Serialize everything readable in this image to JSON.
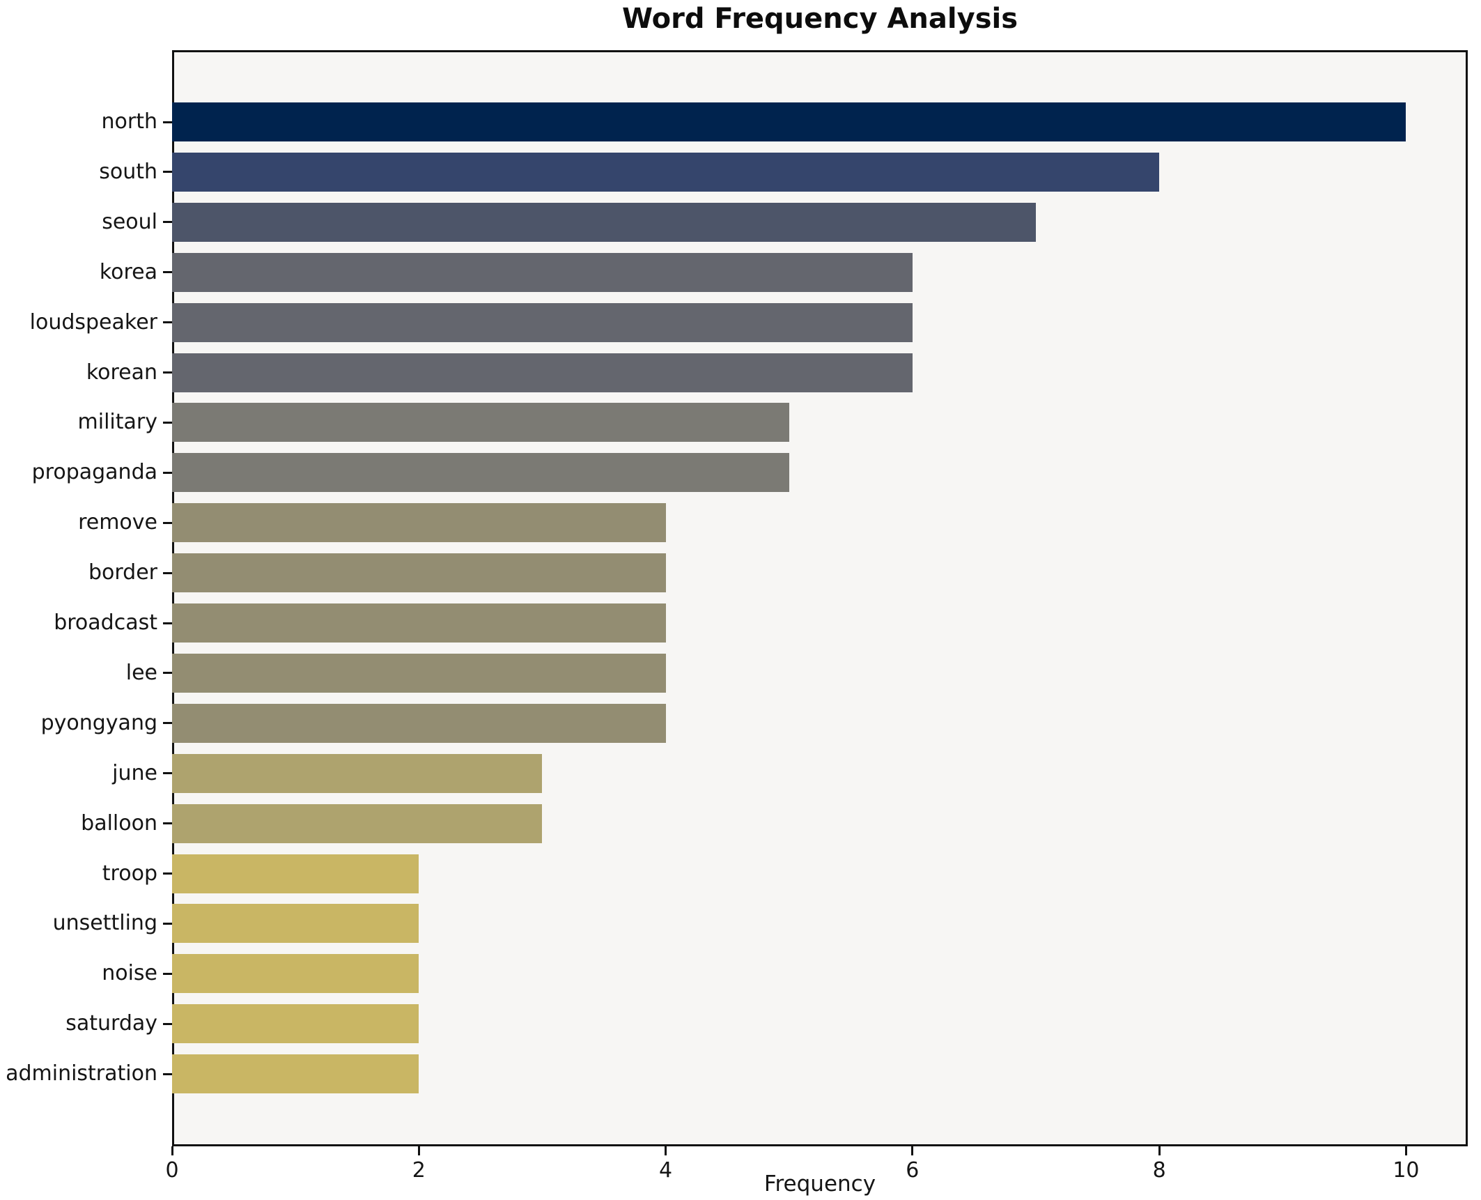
{
  "title": "Word Frequency Analysis",
  "xlabel": "Frequency",
  "chart_data": {
    "type": "bar",
    "orientation": "horizontal",
    "title": "Word Frequency Analysis",
    "xlabel": "Frequency",
    "ylabel": "",
    "xlim": [
      0,
      10.5
    ],
    "xticks": [
      0,
      2,
      4,
      6,
      8,
      10
    ],
    "grid": false,
    "legend": "none",
    "plot_background": "#f7f6f4",
    "categories": [
      "north",
      "south",
      "seoul",
      "korea",
      "loudspeaker",
      "korean",
      "military",
      "propaganda",
      "remove",
      "border",
      "broadcast",
      "lee",
      "pyongyang",
      "june",
      "balloon",
      "troop",
      "unsettling",
      "noise",
      "saturday",
      "administration"
    ],
    "values": [
      10,
      8,
      7,
      6,
      6,
      6,
      5,
      5,
      4,
      4,
      4,
      4,
      4,
      3,
      3,
      2,
      2,
      2,
      2,
      2
    ],
    "bar_colors": [
      "#00234e",
      "#35456c",
      "#4d5569",
      "#64666e",
      "#64666e",
      "#64666e",
      "#7b7a74",
      "#7b7a74",
      "#938d72",
      "#938d72",
      "#938d72",
      "#938d72",
      "#938d72",
      "#aea36e",
      "#aea36e",
      "#c9b664",
      "#c9b664",
      "#c9b664",
      "#c9b664",
      "#c9b664"
    ]
  }
}
